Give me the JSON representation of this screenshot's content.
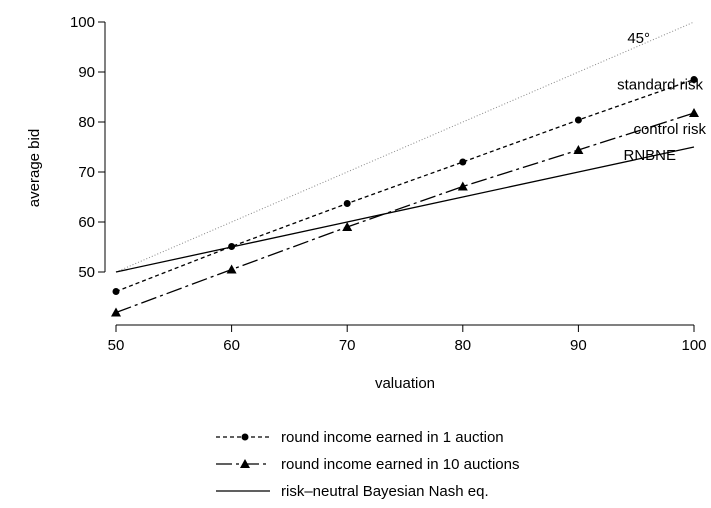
{
  "chart_data": {
    "type": "line",
    "title": "",
    "xlabel": "valuation",
    "ylabel": "average bid",
    "xlim": [
      50,
      100
    ],
    "ylim": [
      41,
      102
    ],
    "xticks": [
      "50",
      "60",
      "70",
      "80",
      "90",
      "100"
    ],
    "yticks": [
      "50",
      "60",
      "70",
      "80",
      "90",
      "100"
    ],
    "x": [
      50,
      60,
      70,
      80,
      90,
      100
    ],
    "grid": false,
    "legend_position": "bottom",
    "series": [
      {
        "name": "round income earned in 1 auction",
        "label": "standard risk",
        "style": "dotted-circle",
        "color": "#000000",
        "values": [
          46.1,
          55.1,
          63.7,
          72.0,
          80.4,
          88.5
        ]
      },
      {
        "name": "round income earned in 10 auctions",
        "label": "control risk",
        "style": "dashdot-triangle",
        "color": "#000000",
        "values": [
          41.9,
          50.5,
          59.0,
          67.1,
          74.4,
          81.8
        ]
      },
      {
        "name": "risk–neutral Bayesian Nash eq.",
        "label": "RNBNE",
        "style": "solid",
        "color": "#000000",
        "values": [
          50,
          55,
          60,
          65,
          70,
          75
        ]
      }
    ],
    "reference_line": {
      "label": "45°",
      "style": "dotted",
      "color": "#888888",
      "values": [
        50,
        60,
        70,
        80,
        90,
        100
      ]
    }
  }
}
